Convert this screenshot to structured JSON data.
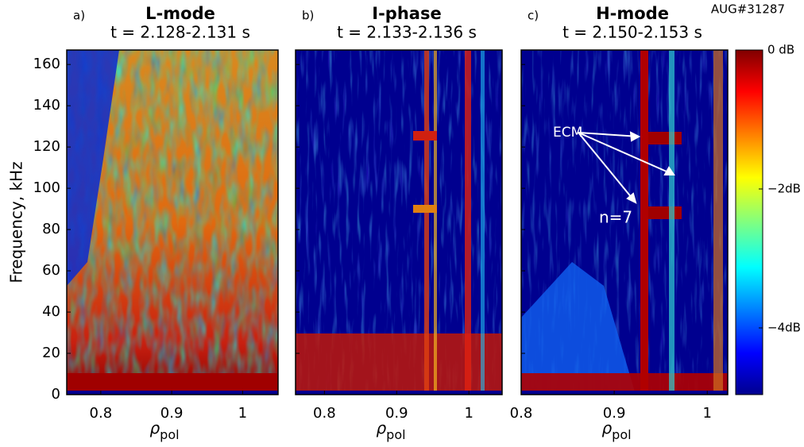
{
  "chart_data": {
    "type": "heatmap",
    "ylabel": "Frequency, kHz",
    "ylim": [
      0,
      167
    ],
    "yticks": [
      0,
      20,
      40,
      60,
      80,
      100,
      120,
      140,
      160
    ],
    "shot": "AUG#31287",
    "panels": [
      {
        "label": "a)",
        "title": "L-mode",
        "subtitle": "t = 2.128-2.131 s",
        "xlim": [
          0.752,
          1.05
        ],
        "xticks": [
          0.8,
          0.9,
          1
        ],
        "xlabel": "ρ",
        "xlabel_sub": "pol"
      },
      {
        "label": "b)",
        "title": "I-phase",
        "subtitle": "t = 2.133-2.136 s",
        "xlim": [
          0.76,
          1.046
        ],
        "xticks": [
          0.8,
          0.9,
          1
        ],
        "xlabel": "ρ",
        "xlabel_sub": "pol"
      },
      {
        "label": "c)",
        "title": "H-mode",
        "subtitle": "t = 2.150-2.153 s",
        "xlim": [
          0.8,
          1.022
        ],
        "xticks": [
          0.8,
          0.9,
          1
        ],
        "xlabel": "ρ",
        "xlabel_sub": "pol"
      }
    ],
    "colorbar": {
      "lim": [
        -4.96,
        0
      ],
      "ticks": [
        {
          "value": 0,
          "label": "0 dB"
        },
        {
          "value": -2,
          "label": "−2dB"
        },
        {
          "value": -4,
          "label": "−4dB"
        }
      ]
    },
    "annotations": [
      "ECM",
      "n=7"
    ]
  }
}
